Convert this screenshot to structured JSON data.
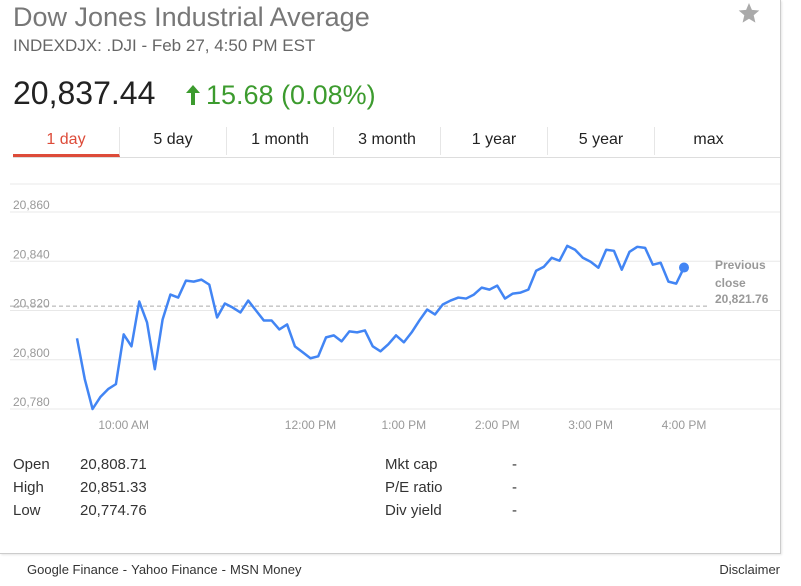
{
  "header": {
    "title": "Dow Jones Industrial Average",
    "subtitle": "INDEXDJX: .DJI - Feb 27, 4:50 PM EST",
    "price": "20,837.44",
    "change": "15.68 (0.08%)"
  },
  "tabs": [
    "1 day",
    "5 day",
    "1 month",
    "3 month",
    "1 year",
    "5 year",
    "max"
  ],
  "chart_data": {
    "type": "line",
    "color": "#4285f4",
    "grid": true,
    "x": [
      570,
      575,
      580,
      585,
      590,
      595,
      600,
      605,
      610,
      615,
      620,
      625,
      630,
      635,
      640,
      645,
      650,
      655,
      660,
      665,
      670,
      675,
      680,
      685,
      690,
      695,
      700,
      705,
      710,
      715,
      720,
      725,
      730,
      735,
      740,
      745,
      750,
      755,
      760,
      765,
      770,
      775,
      780,
      785,
      790,
      795,
      800,
      805,
      810,
      815,
      820,
      825,
      830,
      835,
      840,
      845,
      850,
      855,
      860,
      865,
      870,
      875,
      880,
      885,
      890,
      895,
      900,
      905,
      910,
      915,
      920,
      925,
      930,
      935,
      940,
      945,
      950,
      955,
      960
    ],
    "values": [
      20808.71,
      20792.12,
      20780.0,
      20784.85,
      20788.08,
      20790.1,
      20810.3,
      20805.45,
      20823.64,
      20815.15,
      20796.16,
      20816.36,
      20826.46,
      20825.25,
      20832.12,
      20831.72,
      20832.53,
      20830.51,
      20817.17,
      20822.83,
      20821.21,
      20819.19,
      20824.04,
      20820.0,
      20815.96,
      20815.96,
      20812.32,
      20814.34,
      20805.45,
      20803.03,
      20800.61,
      20801.41,
      20809.09,
      20809.9,
      20807.47,
      20811.51,
      20811.11,
      20811.92,
      20805.45,
      20803.43,
      20806.26,
      20809.9,
      20807.07,
      20811.11,
      20815.96,
      20820.4,
      20818.38,
      20822.42,
      20824.04,
      20825.25,
      20824.85,
      20826.46,
      20829.29,
      20828.48,
      20830.1,
      20824.85,
      20826.87,
      20827.27,
      20828.48,
      20836.16,
      20837.78,
      20841.41,
      20840.2,
      20846.26,
      20844.65,
      20841.41,
      20839.8,
      20837.37,
      20844.65,
      20844.24,
      20836.57,
      20843.84,
      20845.86,
      20845.45,
      20838.59,
      20839.39,
      20831.72,
      20830.91,
      20837.44
    ],
    "xlim": [
      570,
      960
    ],
    "ylim": [
      20780,
      20860
    ],
    "xticks": [
      {
        "value": 600,
        "label": "10:00 AM"
      },
      {
        "value": 720,
        "label": "12:00 PM"
      },
      {
        "value": 780,
        "label": "1:00 PM"
      },
      {
        "value": 840,
        "label": "2:00 PM"
      },
      {
        "value": 900,
        "label": "3:00 PM"
      },
      {
        "value": 960,
        "label": "4:00 PM"
      }
    ],
    "yticks": [
      {
        "value": 20860,
        "label": "20,860"
      },
      {
        "value": 20840,
        "label": "20,840"
      },
      {
        "value": 20820,
        "label": "20,820"
      },
      {
        "value": 20800,
        "label": "20,800"
      },
      {
        "value": 20780,
        "label": "20,780"
      }
    ],
    "previous_close_label": "Previous close",
    "previous_close": {
      "value": 20821.76,
      "label": "20,821.76"
    }
  },
  "stats": {
    "left": [
      [
        "Open",
        "20,808.71"
      ],
      [
        "High",
        "20,851.33"
      ],
      [
        "Low",
        "20,774.76"
      ]
    ],
    "right": [
      [
        "Mkt cap",
        "-"
      ],
      [
        "P/E ratio",
        "-"
      ],
      [
        "Div yield",
        "-"
      ]
    ]
  },
  "footer": {
    "links": [
      "Google Finance",
      "Yahoo Finance",
      "MSN Money"
    ],
    "separator": "-",
    "disclaimer": "Disclaimer"
  }
}
